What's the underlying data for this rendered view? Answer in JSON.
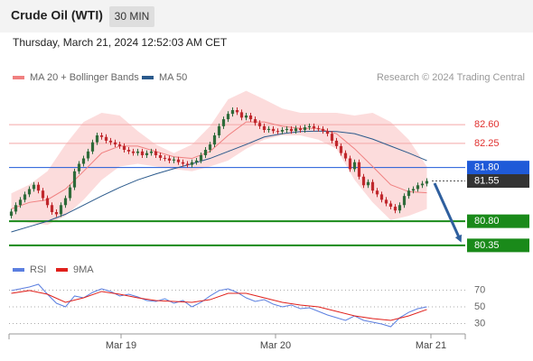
{
  "chart_data": [
    {
      "type": "candlestick",
      "title": "Crude Oil (WTI)",
      "badge": "30 MIN",
      "subtitle": "Thursday, March 21, 2024 12:52:03 AM CET",
      "credit": "Research © 2024 Trading Central",
      "up_color": "#2f6b3a",
      "down_color": "#c0282d",
      "open": [
        80.9,
        80.98,
        81.1,
        81.2,
        81.3,
        81.4,
        81.48,
        81.37,
        81.23,
        81.1,
        80.97,
        80.93,
        81.1,
        81.23,
        81.43,
        81.73,
        81.87,
        81.97,
        82.1,
        82.27,
        82.4,
        82.37,
        82.3,
        82.27,
        82.23,
        82.2,
        82.13,
        82.1,
        82.07,
        82.1,
        82.03,
        82.07,
        82.1,
        82.03,
        81.98,
        81.97,
        81.93,
        81.95,
        81.9,
        81.87,
        81.85,
        81.9,
        81.93,
        82.03,
        82.13,
        82.23,
        82.4,
        82.57,
        82.7,
        82.8,
        82.87,
        82.83,
        82.73,
        82.77,
        82.7,
        82.63,
        82.57,
        82.5,
        82.52,
        82.48,
        82.47,
        82.5,
        82.52,
        82.48,
        82.53,
        82.5,
        82.55,
        82.57,
        82.53,
        82.52,
        82.48,
        82.43,
        82.3,
        82.2,
        82.07,
        81.97,
        81.77,
        81.9,
        81.63,
        81.47,
        81.53,
        81.37,
        81.3,
        81.2,
        81.13,
        81.07,
        81.0,
        81.1,
        81.27,
        81.37,
        81.4,
        81.47,
        81.5
      ],
      "high": [
        81.03,
        81.15,
        81.25,
        81.35,
        81.45,
        81.53,
        81.53,
        81.42,
        81.28,
        81.15,
        81.02,
        81.15,
        81.28,
        81.48,
        81.78,
        81.92,
        82.02,
        82.15,
        82.32,
        82.45,
        82.45,
        82.42,
        82.35,
        82.32,
        82.28,
        82.25,
        82.18,
        82.15,
        82.15,
        82.15,
        82.12,
        82.15,
        82.15,
        82.08,
        82.03,
        82.02,
        82.0,
        82.0,
        81.95,
        81.92,
        81.95,
        81.98,
        82.08,
        82.18,
        82.28,
        82.45,
        82.62,
        82.75,
        82.85,
        82.92,
        82.92,
        82.88,
        82.82,
        82.82,
        82.75,
        82.68,
        82.62,
        82.57,
        82.57,
        82.53,
        82.55,
        82.57,
        82.57,
        82.58,
        82.58,
        82.6,
        82.62,
        82.62,
        82.58,
        82.57,
        82.53,
        82.48,
        82.35,
        82.25,
        82.12,
        82.02,
        81.95,
        81.95,
        81.68,
        81.58,
        81.58,
        81.42,
        81.35,
        81.25,
        81.18,
        81.12,
        81.15,
        81.32,
        81.42,
        81.45,
        81.52,
        81.55,
        81.6
      ],
      "low": [
        80.85,
        80.93,
        81.05,
        81.15,
        81.25,
        81.35,
        81.32,
        81.18,
        81.05,
        80.92,
        80.88,
        80.88,
        81.05,
        81.18,
        81.38,
        81.68,
        81.82,
        81.92,
        82.05,
        82.22,
        82.32,
        82.25,
        82.22,
        82.18,
        82.15,
        82.08,
        82.05,
        82.02,
        82.02,
        81.98,
        81.98,
        82.02,
        81.98,
        81.93,
        81.92,
        81.88,
        81.88,
        81.85,
        81.82,
        81.8,
        81.8,
        81.85,
        81.88,
        81.98,
        82.08,
        82.18,
        82.35,
        82.52,
        82.65,
        82.75,
        82.78,
        82.68,
        82.68,
        82.65,
        82.58,
        82.52,
        82.45,
        82.45,
        82.43,
        82.42,
        82.42,
        82.45,
        82.43,
        82.43,
        82.45,
        82.45,
        82.5,
        82.48,
        82.47,
        82.43,
        82.38,
        82.25,
        82.15,
        82.02,
        81.92,
        81.72,
        81.72,
        81.58,
        81.42,
        81.42,
        81.32,
        81.25,
        81.15,
        81.08,
        81.02,
        80.95,
        80.95,
        81.05,
        81.22,
        81.32,
        81.35,
        81.42,
        81.45
      ],
      "close": [
        80.98,
        81.1,
        81.2,
        81.3,
        81.4,
        81.48,
        81.37,
        81.23,
        81.1,
        80.97,
        80.93,
        81.1,
        81.23,
        81.43,
        81.73,
        81.87,
        81.97,
        82.1,
        82.27,
        82.4,
        82.37,
        82.3,
        82.27,
        82.23,
        82.2,
        82.13,
        82.1,
        82.07,
        82.1,
        82.03,
        82.07,
        82.1,
        82.03,
        81.98,
        81.97,
        81.93,
        81.95,
        81.9,
        81.87,
        81.85,
        81.9,
        81.93,
        82.03,
        82.13,
        82.23,
        82.4,
        82.57,
        82.7,
        82.8,
        82.87,
        82.83,
        82.73,
        82.77,
        82.7,
        82.63,
        82.57,
        82.5,
        82.52,
        82.48,
        82.47,
        82.5,
        82.52,
        82.48,
        82.53,
        82.5,
        82.55,
        82.57,
        82.53,
        82.52,
        82.48,
        82.43,
        82.3,
        82.2,
        82.07,
        81.97,
        81.77,
        81.9,
        81.63,
        81.47,
        81.53,
        81.37,
        81.3,
        81.2,
        81.13,
        81.07,
        81.0,
        81.1,
        81.27,
        81.37,
        81.4,
        81.47,
        81.5,
        81.55
      ],
      "overlay_x": [
        0,
        4,
        8,
        12,
        16,
        20,
        24,
        28,
        32,
        36,
        40,
        44,
        48,
        52,
        56,
        60,
        64,
        68,
        72,
        76,
        80,
        84,
        88,
        92
      ],
      "overlays": [
        {
          "name": "MA 20 + Bollinger Bands",
          "color": "#f08080",
          "band_color": "#fbd3d3",
          "values": [
            81.03,
            81.15,
            81.2,
            81.4,
            81.73,
            82.07,
            82.2,
            82.2,
            82.1,
            82.0,
            81.97,
            82.1,
            82.4,
            82.65,
            82.65,
            82.57,
            82.53,
            82.53,
            82.43,
            82.15,
            81.82,
            81.48,
            81.35,
            81.33
          ],
          "upper": [
            81.32,
            81.48,
            81.73,
            82.23,
            82.65,
            82.82,
            82.77,
            82.48,
            82.23,
            82.07,
            82.23,
            82.57,
            83.07,
            83.23,
            83.07,
            82.9,
            82.82,
            82.82,
            82.82,
            82.77,
            82.82,
            82.65,
            82.32,
            81.82
          ],
          "lower": [
            80.82,
            80.77,
            80.73,
            80.9,
            81.2,
            81.57,
            81.82,
            81.87,
            81.82,
            81.77,
            81.73,
            81.82,
            81.93,
            82.15,
            82.32,
            82.4,
            82.4,
            82.32,
            82.15,
            81.57,
            81.15,
            80.82,
            80.9,
            81.03
          ]
        },
        {
          "name": "MA 50",
          "color": "#2b5a8c",
          "values": [
            80.6,
            80.7,
            80.8,
            80.93,
            81.1,
            81.27,
            81.43,
            81.57,
            81.68,
            81.78,
            81.87,
            81.97,
            82.1,
            82.23,
            82.37,
            82.43,
            82.47,
            82.48,
            82.47,
            82.43,
            82.33,
            82.2,
            82.07,
            81.93
          ]
        }
      ],
      "levels": [
        {
          "value": 82.6,
          "label": "82.60",
          "color": "#e0302e",
          "line_color": "#f4a8a8",
          "line": "solid",
          "line_width": 1,
          "boxed": false
        },
        {
          "value": 82.25,
          "color": "#e0302e",
          "line_color": "#f4a8a8",
          "line": "solid",
          "line_width": 1,
          "boxed": false
        },
        {
          "value": 81.8,
          "label": "81.80",
          "color": "#1f5ad8",
          "line_color": "#1f5ad8",
          "line": "solid",
          "line_width": 1,
          "boxed": true
        },
        {
          "value": 81.55,
          "label": "81.55",
          "color": "#333333",
          "line_color": "#555555",
          "line": "dotted",
          "line_width": 1,
          "boxed": true
        },
        {
          "value": 80.8,
          "label": "80.80",
          "color": "#1a8a1a",
          "line_color": "#1a8a1a",
          "line": "solid",
          "line_width": 2,
          "boxed": true
        },
        {
          "value": 80.35,
          "label": "80.35",
          "color": "#1a8a1a",
          "line_color": "#1a8a1a",
          "line": "solid",
          "line_width": 2,
          "boxed": true
        }
      ],
      "xlim": [
        -0.5,
        100.5
      ],
      "ylim": [
        80.18,
        83.24
      ]
    },
    {
      "type": "line",
      "series": [
        {
          "name": "RSI",
          "color": "#5b7fe0",
          "x": [
            0,
            2,
            4,
            6,
            8,
            10,
            12,
            14,
            16,
            18,
            20,
            22,
            24,
            26,
            28,
            30,
            32,
            34,
            36,
            38,
            40,
            42,
            44,
            46,
            48,
            50,
            52,
            54,
            56,
            58,
            60,
            62,
            64,
            66,
            68,
            70,
            72,
            74,
            76,
            78,
            80,
            82,
            84,
            86,
            88,
            90,
            92
          ],
          "values": [
            69.5,
            71.6,
            73.8,
            77.0,
            65.1,
            54.3,
            50.0,
            63.0,
            60.8,
            67.3,
            71.6,
            68.4,
            63.0,
            65.1,
            61.9,
            57.6,
            56.5,
            59.7,
            54.3,
            57.6,
            50.0,
            55.4,
            63.0,
            69.5,
            71.6,
            67.3,
            60.8,
            56.5,
            58.6,
            53.2,
            50.0,
            52.2,
            47.8,
            48.9,
            44.6,
            40.3,
            37.0,
            33.8,
            39.2,
            33.8,
            31.6,
            29.5,
            26.2,
            37.0,
            43.5,
            47.8,
            50.0
          ]
        },
        {
          "name": "9MA",
          "color": "#e0201b",
          "x": [
            0,
            4,
            8,
            12,
            16,
            20,
            24,
            28,
            32,
            36,
            40,
            44,
            48,
            52,
            56,
            60,
            64,
            68,
            72,
            76,
            80,
            84,
            88,
            92
          ],
          "values": [
            66.2,
            69.5,
            65.1,
            55.4,
            60.8,
            68.4,
            65.1,
            60.8,
            57.6,
            56.5,
            55.4,
            58.6,
            66.2,
            66.2,
            60.8,
            55.4,
            52.2,
            50.0,
            44.6,
            39.2,
            35.9,
            33.8,
            39.2,
            46.8
          ]
        }
      ],
      "xlim": [
        -0.5,
        100.5
      ],
      "ylim": [
        17.6,
        82.4
      ],
      "yticks": [
        70,
        50,
        30
      ],
      "grid": true,
      "xticks": [
        {
          "value": 24.3,
          "label": "Mar 19"
        },
        {
          "value": 58.5,
          "label": "Mar 20"
        },
        {
          "value": 92.9,
          "label": "Mar 21"
        }
      ]
    }
  ]
}
